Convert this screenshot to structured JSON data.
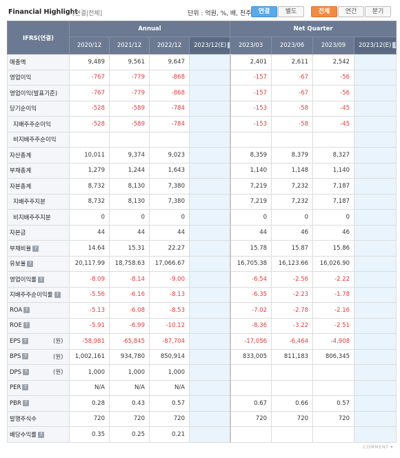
{
  "header": {
    "title": "Financial Highlight",
    "subtitle": "[연결|전체]",
    "unit_text": "단위 : 억원, %, 배, 천주",
    "consolidation_buttons": [
      "연결",
      "별도"
    ],
    "period_buttons": [
      "전체",
      "연간",
      "분기"
    ]
  },
  "table": {
    "corner_label": "IFRS(연결)",
    "group_annual": "Annual",
    "group_quarter": "Net Quarter",
    "annual_columns": [
      "2020/12",
      "2021/12",
      "2022/12",
      "2023/12(E)"
    ],
    "quarter_columns": [
      "2023/03",
      "2023/06",
      "2023/09",
      "2023/12(E)"
    ],
    "rows": [
      {
        "label": "매출액",
        "unit": "",
        "help": false,
        "sub": false,
        "annual": [
          "9,489",
          "9,561",
          "9,647",
          ""
        ],
        "quarter": [
          "2,401",
          "2,611",
          "2,542",
          ""
        ]
      },
      {
        "label": "영업이익",
        "unit": "",
        "help": false,
        "sub": false,
        "annual": [
          "-767",
          "-779",
          "-868",
          ""
        ],
        "quarter": [
          "-157",
          "-67",
          "-56",
          ""
        ]
      },
      {
        "label": "영업이익(발표기준)",
        "unit": "",
        "help": false,
        "sub": false,
        "annual": [
          "-767",
          "-779",
          "-868",
          ""
        ],
        "quarter": [
          "-157",
          "-67",
          "-56",
          ""
        ]
      },
      {
        "label": "당기순이익",
        "unit": "",
        "help": false,
        "sub": false,
        "annual": [
          "-528",
          "-589",
          "-784",
          ""
        ],
        "quarter": [
          "-153",
          "-58",
          "-45",
          ""
        ]
      },
      {
        "label": "지배주주순이익",
        "unit": "",
        "help": false,
        "sub": true,
        "annual": [
          "-528",
          "-589",
          "-784",
          ""
        ],
        "quarter": [
          "-153",
          "-58",
          "-45",
          ""
        ]
      },
      {
        "label": "비지배주주순이익",
        "unit": "",
        "help": false,
        "sub": true,
        "annual": [
          "",
          "",
          "",
          ""
        ],
        "quarter": [
          "",
          "",
          "",
          ""
        ]
      },
      {
        "label": "자산총계",
        "unit": "",
        "help": false,
        "sub": false,
        "annual": [
          "10,011",
          "9,374",
          "9,023",
          ""
        ],
        "quarter": [
          "8,359",
          "8,379",
          "8,327",
          ""
        ]
      },
      {
        "label": "부채총계",
        "unit": "",
        "help": false,
        "sub": false,
        "annual": [
          "1,279",
          "1,244",
          "1,643",
          ""
        ],
        "quarter": [
          "1,140",
          "1,148",
          "1,140",
          ""
        ]
      },
      {
        "label": "자본총계",
        "unit": "",
        "help": false,
        "sub": false,
        "annual": [
          "8,732",
          "8,130",
          "7,380",
          ""
        ],
        "quarter": [
          "7,219",
          "7,232",
          "7,187",
          ""
        ]
      },
      {
        "label": "지배주주지분",
        "unit": "",
        "help": false,
        "sub": true,
        "annual": [
          "8,732",
          "8,130",
          "7,380",
          ""
        ],
        "quarter": [
          "7,219",
          "7,232",
          "7,187",
          ""
        ]
      },
      {
        "label": "비지배주주지분",
        "unit": "",
        "help": false,
        "sub": true,
        "annual": [
          "0",
          "0",
          "0",
          ""
        ],
        "quarter": [
          "0",
          "0",
          "0",
          ""
        ]
      },
      {
        "label": "자본금",
        "unit": "",
        "help": false,
        "sub": false,
        "annual": [
          "44",
          "44",
          "44",
          ""
        ],
        "quarter": [
          "44",
          "46",
          "46",
          ""
        ]
      },
      {
        "label": "부채비율",
        "unit": "",
        "help": true,
        "sub": false,
        "annual": [
          "14.64",
          "15.31",
          "22.27",
          ""
        ],
        "quarter": [
          "15.78",
          "15.87",
          "15.86",
          ""
        ]
      },
      {
        "label": "유보율",
        "unit": "",
        "help": true,
        "sub": false,
        "annual": [
          "20,117.99",
          "18,758.63",
          "17,066.67",
          ""
        ],
        "quarter": [
          "16,705.38",
          "16,123.66",
          "16,026.90",
          ""
        ]
      },
      {
        "label": "영업이익률",
        "unit": "",
        "help": true,
        "sub": false,
        "annual": [
          "-8.09",
          "-8.14",
          "-9.00",
          ""
        ],
        "quarter": [
          "-6.54",
          "-2.56",
          "-2.22",
          ""
        ]
      },
      {
        "label": "지배주주순이익률",
        "unit": "",
        "help": true,
        "sub": false,
        "annual": [
          "-5.56",
          "-6.16",
          "-8.13",
          ""
        ],
        "quarter": [
          "-6.35",
          "-2.23",
          "-1.78",
          ""
        ]
      },
      {
        "label": "ROA",
        "unit": "",
        "help": true,
        "sub": false,
        "annual": [
          "-5.13",
          "-6.08",
          "-8.53",
          ""
        ],
        "quarter": [
          "-7.02",
          "-2.78",
          "-2.16",
          ""
        ]
      },
      {
        "label": "ROE",
        "unit": "",
        "help": true,
        "sub": false,
        "annual": [
          "-5.91",
          "-6.99",
          "-10.12",
          ""
        ],
        "quarter": [
          "-8.36",
          "-3.22",
          "-2.51",
          ""
        ]
      },
      {
        "label": "EPS",
        "unit": "(원)",
        "help": true,
        "sub": false,
        "annual": [
          "-58,981",
          "-65,845",
          "-87,704",
          ""
        ],
        "quarter": [
          "-17,056",
          "-6,464",
          "-4,908",
          ""
        ]
      },
      {
        "label": "BPS",
        "unit": "(원)",
        "help": true,
        "sub": false,
        "annual": [
          "1,002,161",
          "934,780",
          "850,914",
          ""
        ],
        "quarter": [
          "833,005",
          "811,183",
          "806,345",
          ""
        ]
      },
      {
        "label": "DPS",
        "unit": "(원)",
        "help": true,
        "sub": false,
        "annual": [
          "1,000",
          "1,000",
          "1,000",
          ""
        ],
        "quarter": [
          "",
          "",
          "",
          ""
        ]
      },
      {
        "label": "PER",
        "unit": "",
        "help": true,
        "sub": false,
        "annual": [
          "N/A",
          "N/A",
          "N/A",
          ""
        ],
        "quarter": [
          "",
          "",
          "",
          ""
        ]
      },
      {
        "label": "PBR",
        "unit": "",
        "help": true,
        "sub": false,
        "annual": [
          "0.28",
          "0.43",
          "0.57",
          ""
        ],
        "quarter": [
          "0.67",
          "0.66",
          "0.57",
          ""
        ]
      },
      {
        "label": "발행주식수",
        "unit": "",
        "help": false,
        "sub": false,
        "annual": [
          "720",
          "720",
          "720",
          ""
        ],
        "quarter": [
          "720",
          "720",
          "720",
          ""
        ]
      },
      {
        "label": "배당수익률",
        "unit": "",
        "help": true,
        "sub": false,
        "annual": [
          "0.35",
          "0.25",
          "0.21",
          ""
        ],
        "quarter": [
          "",
          "",
          "",
          ""
        ]
      }
    ]
  },
  "footer": {
    "comment_label": "COMMENT"
  }
}
